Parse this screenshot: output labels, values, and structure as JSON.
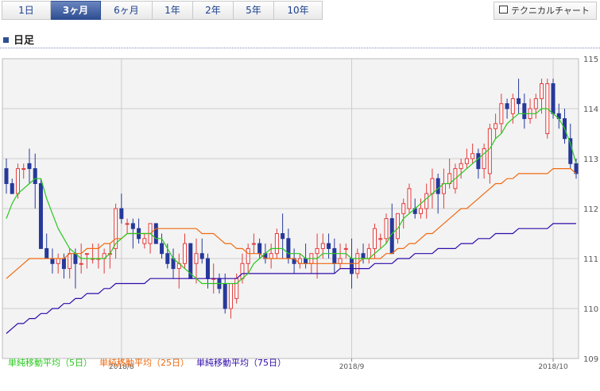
{
  "tabs": [
    {
      "label": "1日",
      "width": 60,
      "active": false
    },
    {
      "label": "3ヶ月",
      "width": 62,
      "active": true
    },
    {
      "label": "6ヶ月",
      "width": 64,
      "active": false
    },
    {
      "label": "1年",
      "width": 50,
      "active": false
    },
    {
      "label": "2年",
      "width": 50,
      "active": false
    },
    {
      "label": "5年",
      "width": 50,
      "active": false
    },
    {
      "label": "10年",
      "width": 60,
      "active": false
    }
  ],
  "technical_button": {
    "label": "テクニカルチャート"
  },
  "section_title": "日足",
  "legend": {
    "ma5": "単純移動平均（5日）",
    "ma25": "単純移動平均（25日）",
    "ma75": "単純移動平均（75日）"
  },
  "colors": {
    "up": "#e43b3b",
    "down": "#26399a",
    "ma5": "#28c81e",
    "ma25": "#ee6a10",
    "ma75": "#2e0aa8",
    "grid": "#cccccc",
    "plot_bg": "#f3f3f3"
  },
  "chart_data": {
    "type": "candlestick",
    "ylim": [
      109,
      115
    ],
    "yticks": [
      109,
      110,
      111,
      112,
      113,
      114,
      115
    ],
    "xtick_labels": [
      {
        "label": "2018/8",
        "index": 20
      },
      {
        "label": "2018/9",
        "index": 60
      },
      {
        "label": "2018/10",
        "index": 95
      }
    ],
    "grid": true,
    "ohlc": [
      [
        112.8,
        113.0,
        112.3,
        112.5
      ],
      [
        112.5,
        112.6,
        112.3,
        112.3
      ],
      [
        112.3,
        112.9,
        112.2,
        112.8
      ],
      [
        112.8,
        112.9,
        112.6,
        112.8
      ],
      [
        112.9,
        113.2,
        112.5,
        112.8
      ],
      [
        112.8,
        113.1,
        112.0,
        112.5
      ],
      [
        112.5,
        112.6,
        111.2,
        111.2
      ],
      [
        111.2,
        111.5,
        111.0,
        111.0
      ],
      [
        111.0,
        111.2,
        110.7,
        110.9
      ],
      [
        110.9,
        111.1,
        110.7,
        111.0
      ],
      [
        111.0,
        111.1,
        110.6,
        110.8
      ],
      [
        110.8,
        111.2,
        110.6,
        111.1
      ],
      [
        111.1,
        111.2,
        110.4,
        110.9
      ],
      [
        110.9,
        111.3,
        110.7,
        110.9
      ],
      [
        111.1,
        111.1,
        110.8,
        111.1
      ],
      [
        111.0,
        111.3,
        110.9,
        111.0
      ],
      [
        111.0,
        111.3,
        110.8,
        111.0
      ],
      [
        111.0,
        111.2,
        110.7,
        111.1
      ],
      [
        111.1,
        111.3,
        110.8,
        111.1
      ],
      [
        111.2,
        112.1,
        111.0,
        112.0
      ],
      [
        112.0,
        112.3,
        111.7,
        111.8
      ],
      [
        111.7,
        111.8,
        111.5,
        111.7
      ],
      [
        111.7,
        111.8,
        111.2,
        111.6
      ],
      [
        111.6,
        111.8,
        111.3,
        111.4
      ],
      [
        111.3,
        111.5,
        111.2,
        111.4
      ],
      [
        111.3,
        111.7,
        111.1,
        111.7
      ],
      [
        111.7,
        111.7,
        111.3,
        111.3
      ],
      [
        111.3,
        111.5,
        111.0,
        111.1
      ],
      [
        111.1,
        111.3,
        110.8,
        110.9
      ],
      [
        111.0,
        111.2,
        110.6,
        110.8
      ],
      [
        110.8,
        111.1,
        110.4,
        110.9
      ],
      [
        110.9,
        111.5,
        110.8,
        111.3
      ],
      [
        111.3,
        111.3,
        110.6,
        110.6
      ],
      [
        110.9,
        111.4,
        110.5,
        111.1
      ],
      [
        111.1,
        111.4,
        110.9,
        111.0
      ],
      [
        111.0,
        111.1,
        110.4,
        110.6
      ],
      [
        110.6,
        110.9,
        110.3,
        110.6
      ],
      [
        110.6,
        110.7,
        110.3,
        110.4
      ],
      [
        110.5,
        110.7,
        109.9,
        110.0
      ],
      [
        110.0,
        110.5,
        109.8,
        110.5
      ],
      [
        110.2,
        110.7,
        110.1,
        110.6
      ],
      [
        110.6,
        111.1,
        110.5,
        110.9
      ],
      [
        110.9,
        111.3,
        110.7,
        111.2
      ],
      [
        111.3,
        111.5,
        111.1,
        111.3
      ],
      [
        111.3,
        111.4,
        111.0,
        111.1
      ],
      [
        111.1,
        111.3,
        110.9,
        111.0
      ],
      [
        111.0,
        111.3,
        110.8,
        111.1
      ],
      [
        111.1,
        111.6,
        111.0,
        111.5
      ],
      [
        111.5,
        111.9,
        111.0,
        111.4
      ],
      [
        111.4,
        111.6,
        110.9,
        111.0
      ],
      [
        111.0,
        111.2,
        110.7,
        110.9
      ],
      [
        110.9,
        111.1,
        110.8,
        111.0
      ],
      [
        111.0,
        111.3,
        110.8,
        110.9
      ],
      [
        110.9,
        111.1,
        110.7,
        111.1
      ],
      [
        111.1,
        111.5,
        110.6,
        111.2
      ],
      [
        111.2,
        111.5,
        111.0,
        111.3
      ],
      [
        111.3,
        111.5,
        111.0,
        111.2
      ],
      [
        111.2,
        111.4,
        110.7,
        110.9
      ],
      [
        110.9,
        111.3,
        110.8,
        111.0
      ],
      [
        111.2,
        111.3,
        111.0,
        111.2
      ],
      [
        111.0,
        111.4,
        110.4,
        110.7
      ],
      [
        110.7,
        111.2,
        110.6,
        111.1
      ],
      [
        111.1,
        111.3,
        110.9,
        111.0
      ],
      [
        111.0,
        111.3,
        110.9,
        111.2
      ],
      [
        111.2,
        111.7,
        111.0,
        111.6
      ],
      [
        111.4,
        111.5,
        111.2,
        111.4
      ],
      [
        111.4,
        111.9,
        111.3,
        111.8
      ],
      [
        111.8,
        112.1,
        111.1,
        111.1
      ],
      [
        111.4,
        111.9,
        111.3,
        111.9
      ],
      [
        111.9,
        112.2,
        111.6,
        112.1
      ],
      [
        112.0,
        112.5,
        111.9,
        112.4
      ],
      [
        112.0,
        112.2,
        111.8,
        111.9
      ],
      [
        111.9,
        112.2,
        111.8,
        112.0
      ],
      [
        112.0,
        112.5,
        111.8,
        112.3
      ],
      [
        112.3,
        112.8,
        112.0,
        112.6
      ],
      [
        112.6,
        112.7,
        111.9,
        112.3
      ],
      [
        112.3,
        112.8,
        112.0,
        112.5
      ],
      [
        112.5,
        113.0,
        112.4,
        112.7
      ],
      [
        112.4,
        112.9,
        112.3,
        112.8
      ],
      [
        112.8,
        113.0,
        112.6,
        112.9
      ],
      [
        112.9,
        113.2,
        112.8,
        113.0
      ],
      [
        113.0,
        113.3,
        112.9,
        113.1
      ],
      [
        113.1,
        113.2,
        112.6,
        112.8
      ],
      [
        112.8,
        113.3,
        112.6,
        113.2
      ],
      [
        112.7,
        113.7,
        112.5,
        113.6
      ],
      [
        113.6,
        113.9,
        113.4,
        113.7
      ],
      [
        113.7,
        114.3,
        113.5,
        114.1
      ],
      [
        114.1,
        114.2,
        113.8,
        114.0
      ],
      [
        113.9,
        114.3,
        113.7,
        114.2
      ],
      [
        114.2,
        114.6,
        113.9,
        114.1
      ],
      [
        114.1,
        114.3,
        113.6,
        113.8
      ],
      [
        113.8,
        114.2,
        113.7,
        114.0
      ],
      [
        114.0,
        114.3,
        113.8,
        114.2
      ],
      [
        114.2,
        114.6,
        113.9,
        114.5
      ],
      [
        113.5,
        114.6,
        113.4,
        114.5
      ],
      [
        114.5,
        114.6,
        113.8,
        113.9
      ],
      [
        113.9,
        114.1,
        113.6,
        113.8
      ],
      [
        113.8,
        114.0,
        113.3,
        113.4
      ],
      [
        113.4,
        113.7,
        112.8,
        112.9
      ],
      [
        112.9,
        113.0,
        112.6,
        112.7
      ]
    ],
    "ma5": [
      111.8,
      112.1,
      112.3,
      112.4,
      112.5,
      112.6,
      112.6,
      112.2,
      111.9,
      111.6,
      111.4,
      111.2,
      111.1,
      111.0,
      111.0,
      111.0,
      111.0,
      111.0,
      111.1,
      111.3,
      111.4,
      111.5,
      111.5,
      111.5,
      111.5,
      111.5,
      111.4,
      111.4,
      111.2,
      111.0,
      110.9,
      110.8,
      110.7,
      110.6,
      110.5,
      110.5,
      110.5,
      110.5,
      110.5,
      110.5,
      110.5,
      110.6,
      110.7,
      110.9,
      111.0,
      111.1,
      111.2,
      111.2,
      111.2,
      111.1,
      111.1,
      111.1,
      111.0,
      111.0,
      111.0,
      111.1,
      111.1,
      111.1,
      111.1,
      111.1,
      111.0,
      111.0,
      111.0,
      111.0,
      111.1,
      111.2,
      111.3,
      111.5,
      111.6,
      111.8,
      111.9,
      112.0,
      112.1,
      112.2,
      112.3,
      112.4,
      112.5,
      112.5,
      112.6,
      112.7,
      112.8,
      112.9,
      113.0,
      113.1,
      113.2,
      113.4,
      113.5,
      113.7,
      113.8,
      113.9,
      113.9,
      113.9,
      113.9,
      114.0,
      114.0,
      113.9,
      113.8,
      113.6,
      113.3,
      112.9
    ],
    "ma25": [
      110.6,
      110.7,
      110.8,
      110.9,
      111.0,
      111.0,
      111.0,
      111.0,
      111.0,
      111.0,
      111.0,
      111.1,
      111.1,
      111.1,
      111.2,
      111.2,
      111.2,
      111.3,
      111.3,
      111.4,
      111.4,
      111.5,
      111.5,
      111.5,
      111.5,
      111.5,
      111.6,
      111.6,
      111.6,
      111.6,
      111.6,
      111.6,
      111.6,
      111.6,
      111.5,
      111.5,
      111.5,
      111.4,
      111.3,
      111.3,
      111.2,
      111.2,
      111.1,
      111.1,
      111.1,
      111.0,
      111.0,
      111.0,
      111.0,
      111.0,
      111.0,
      110.9,
      110.9,
      110.9,
      110.9,
      110.9,
      110.9,
      110.9,
      110.9,
      110.9,
      110.9,
      110.9,
      111.0,
      111.0,
      111.0,
      111.0,
      111.1,
      111.1,
      111.2,
      111.2,
      111.3,
      111.3,
      111.4,
      111.5,
      111.5,
      111.6,
      111.7,
      111.8,
      111.9,
      112.0,
      112.0,
      112.1,
      112.2,
      112.3,
      112.4,
      112.5,
      112.5,
      112.6,
      112.6,
      112.7,
      112.7,
      112.7,
      112.7,
      112.7,
      112.7,
      112.8,
      112.8,
      112.8,
      112.8,
      112.7
    ],
    "ma75": [
      109.5,
      109.6,
      109.7,
      109.7,
      109.8,
      109.8,
      109.9,
      109.9,
      110.0,
      110.0,
      110.1,
      110.1,
      110.2,
      110.2,
      110.3,
      110.3,
      110.3,
      110.4,
      110.4,
      110.5,
      110.5,
      110.5,
      110.5,
      110.5,
      110.5,
      110.6,
      110.6,
      110.6,
      110.6,
      110.6,
      110.6,
      110.6,
      110.6,
      110.6,
      110.6,
      110.6,
      110.6,
      110.6,
      110.6,
      110.6,
      110.6,
      110.7,
      110.7,
      110.7,
      110.7,
      110.7,
      110.7,
      110.7,
      110.7,
      110.7,
      110.7,
      110.7,
      110.7,
      110.7,
      110.7,
      110.7,
      110.7,
      110.7,
      110.8,
      110.8,
      110.8,
      110.8,
      110.8,
      110.8,
      110.9,
      110.9,
      110.9,
      110.9,
      111.0,
      111.0,
      111.0,
      111.1,
      111.1,
      111.1,
      111.1,
      111.2,
      111.2,
      111.2,
      111.2,
      111.3,
      111.3,
      111.3,
      111.4,
      111.4,
      111.4,
      111.5,
      111.5,
      111.5,
      111.5,
      111.6,
      111.6,
      111.6,
      111.6,
      111.6,
      111.6,
      111.7,
      111.7,
      111.7,
      111.7,
      111.7
    ]
  }
}
